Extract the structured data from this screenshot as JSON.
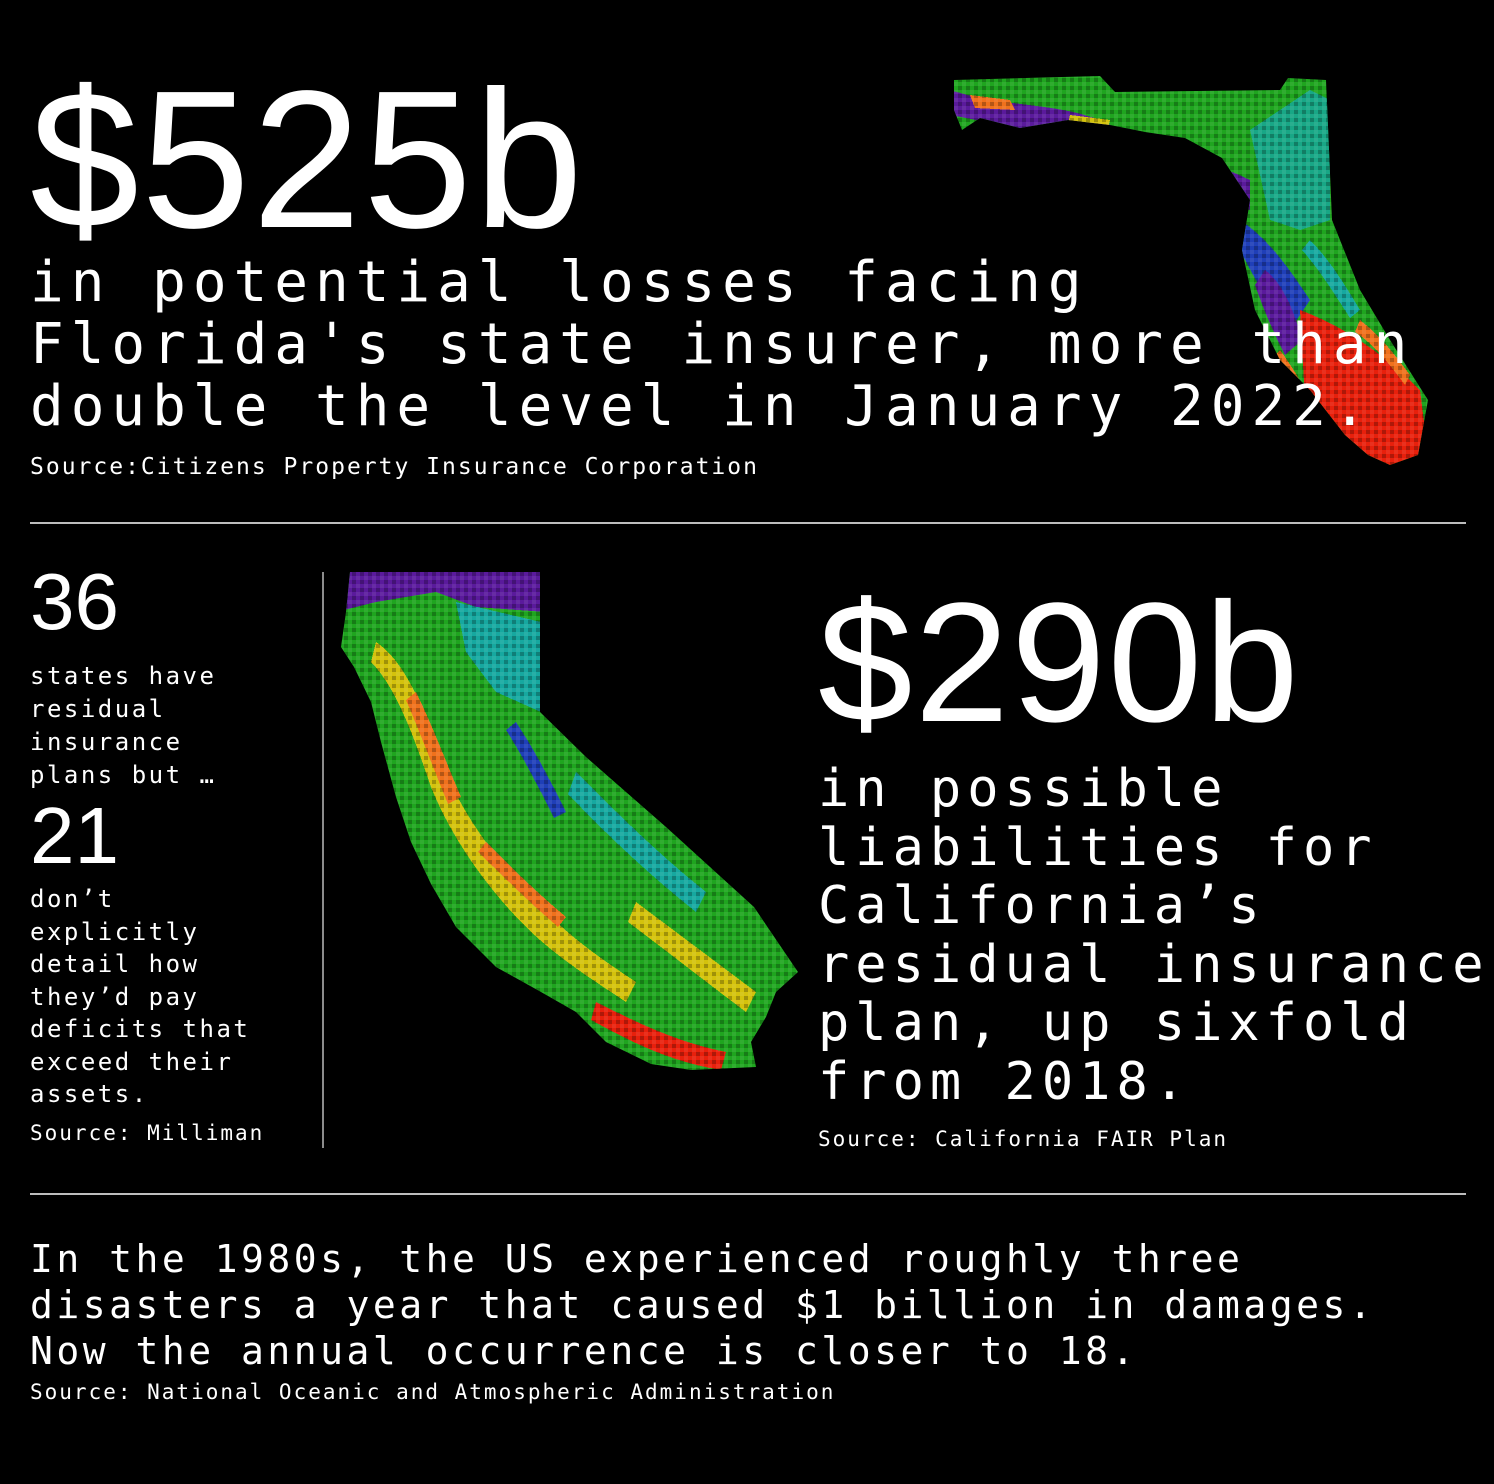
{
  "florida": {
    "big_number": "$525b",
    "description_lines": [
      "in potential losses facing",
      "Florida's state insurer, more than",
      "double the level in January 2022."
    ],
    "source": "Source:Citizens Property Insurance Corporation"
  },
  "milliman": {
    "count_states": "36",
    "states_text_lines": [
      "states have",
      "residual",
      "insurance",
      "plans but …"
    ],
    "count_no_plan": "21",
    "no_plan_text_lines": [
      "don’t",
      "explicitly",
      "detail how",
      "they’d pay",
      "deficits that",
      "exceed their",
      "assets."
    ],
    "source": "Source: Milliman"
  },
  "california": {
    "big_number": "$290b",
    "description_lines": [
      "in possible",
      "liabilities for",
      "California’s",
      "residual insurance",
      "plan, up sixfold",
      "from 2018."
    ],
    "source": "Source: California FAIR Plan"
  },
  "disasters": {
    "description_lines": [
      "In the 1980s, the US experienced roughly three",
      "disasters a year that caused $1 billion in damages.",
      "Now the annual occurrence is closer to 18."
    ],
    "source": "Source: National Oceanic and Atmospheric Administration"
  },
  "map_colors": {
    "purple": "#5a1a9c",
    "blue": "#1f3fb8",
    "teal": "#16a8a0",
    "green": "#1fa51f",
    "yellow": "#d4c20c",
    "orange": "#f0711c",
    "red": "#e8200c"
  }
}
